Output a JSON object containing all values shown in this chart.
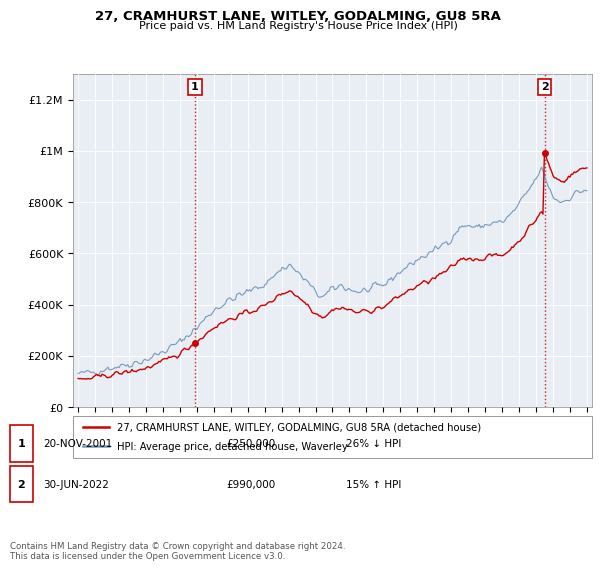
{
  "title": "27, CRAMHURST LANE, WITLEY, GODALMING, GU8 5RA",
  "subtitle": "Price paid vs. HM Land Registry's House Price Index (HPI)",
  "sale1_date": "20-NOV-2001",
  "sale1_price": 250000,
  "sale1_pct": "26% ↓ HPI",
  "sale1_label": "1",
  "sale1_year": 2001.89,
  "sale2_date": "30-JUN-2022",
  "sale2_price": 990000,
  "sale2_pct": "15% ↑ HPI",
  "sale2_label": "2",
  "sale2_year": 2022.5,
  "red_color": "#cc0000",
  "blue_color": "#7799bb",
  "plot_bg": "#e8eef4",
  "legend1": "27, CRAMHURST LANE, WITLEY, GODALMING, GU8 5RA (detached house)",
  "legend2": "HPI: Average price, detached house, Waverley",
  "footer": "Contains HM Land Registry data © Crown copyright and database right 2024.\nThis data is licensed under the Open Government Licence v3.0.",
  "ylabel_ticks": [
    "£0",
    "£200K",
    "£400K",
    "£600K",
    "£800K",
    "£1M",
    "£1.2M"
  ],
  "ytick_vals": [
    0,
    200000,
    400000,
    600000,
    800000,
    1000000,
    1200000
  ],
  "ylim": [
    0,
    1300000
  ],
  "xlim_start": 1994.7,
  "xlim_end": 2025.3
}
